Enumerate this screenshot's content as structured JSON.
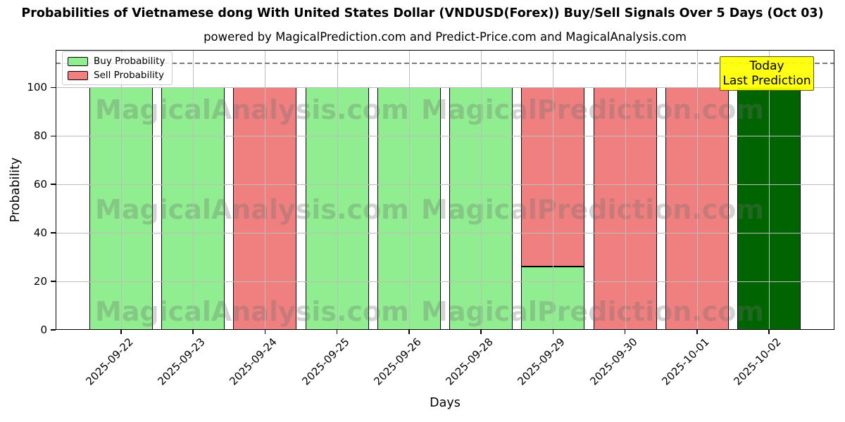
{
  "header": {
    "title": "Probabilities of Vietnamese dong With United States Dollar (VNDUSD(Forex)) Buy/Sell Signals Over 5 Days (Oct 03)",
    "subtitle": "powered by MagicalPrediction.com and Predict-Price.com and MagicalAnalysis.com"
  },
  "chart_data": {
    "type": "bar",
    "stacked": true,
    "title": "Probabilities of Vietnamese dong With United States Dollar (VNDUSD(Forex)) Buy/Sell Signals Over 5 Days (Oct 03)",
    "xlabel": "Days",
    "ylabel": "Probability",
    "ylim": [
      0,
      115.5
    ],
    "yticks": [
      0,
      20,
      40,
      60,
      80,
      100
    ],
    "grid": true,
    "dashed_line_y": 110,
    "categories": [
      "2025-09-22",
      "2025-09-23",
      "2025-09-24",
      "2025-09-25",
      "2025-09-26",
      "2025-09-28",
      "2025-09-29",
      "2025-09-30",
      "2025-10-01",
      "2025-10-02"
    ],
    "series": [
      {
        "name": "Buy Probability",
        "color": "#90EE90",
        "values": [
          100,
          100,
          0,
          100,
          100,
          100,
          26,
          0,
          0,
          0
        ]
      },
      {
        "name": "Sell Probability",
        "color": "#F08080",
        "values": [
          0,
          0,
          100,
          0,
          0,
          0,
          74,
          100,
          100,
          0
        ]
      },
      {
        "name": "Today Prediction",
        "color": "#006400",
        "values": [
          0,
          0,
          0,
          0,
          0,
          0,
          0,
          0,
          0,
          100
        ]
      }
    ],
    "legend": {
      "position": "upper-left",
      "entries": [
        {
          "label": "Buy Probability",
          "color": "#90EE90"
        },
        {
          "label": "Sell Probability",
          "color": "#F08080"
        }
      ]
    },
    "annotation": {
      "lines": [
        "Today",
        "Last Prediction"
      ],
      "bg": "#FFFF00"
    },
    "watermarks": [
      "MagicalAnalysis.com",
      "MagicalPrediction.com"
    ]
  },
  "colors": {
    "grid": "#bdbdbd",
    "dashed_line": "#7a7a7a",
    "bar_edge": "#000000",
    "annotation_bg": "#FFFF00",
    "legend_buy": "#90EE90",
    "legend_sell": "#F08080",
    "today_bar": "#006400",
    "watermark": "rgba(110,110,110,0.30)"
  }
}
